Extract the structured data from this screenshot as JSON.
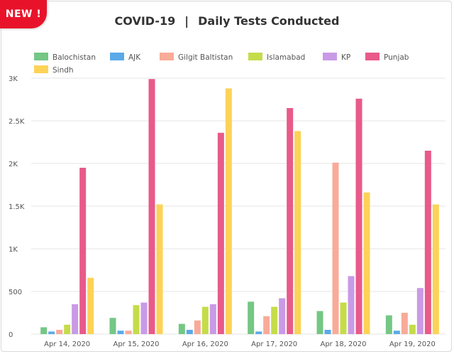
{
  "badge": {
    "label": "NEW !"
  },
  "header": {
    "title_left": "COVID-19",
    "separator": "|",
    "title_right": "Daily Tests Conducted"
  },
  "colors": {
    "Balochistan": "#74c784",
    "AJK": "#5aaae8",
    "Gilgit Baltistan": "#f8ab98",
    "Islamabad": "#c5dc4a",
    "KP": "#c99ae6",
    "Punjab": "#e85a8a",
    "Sindh": "#fdd257",
    "grid": "#e6e6e6",
    "axis_text": "#555555"
  },
  "chart_data": {
    "type": "bar",
    "title": "COVID-19 | Daily Tests Conducted",
    "xlabel": "",
    "ylabel": "",
    "ylim": [
      0,
      3000
    ],
    "yticks": [
      0,
      500,
      1000,
      1500,
      2000,
      2500,
      3000
    ],
    "ytick_labels": [
      "0",
      "500",
      "1K",
      "1.5K",
      "2K",
      "2.5K",
      "3K"
    ],
    "legend_position": "top-left",
    "grid": true,
    "categories": [
      "Apr 14, 2020",
      "Apr 15, 2020",
      "Apr 16, 2020",
      "Apr 17, 2020",
      "Apr 18, 2020",
      "Apr 19, 2020"
    ],
    "series": [
      {
        "name": "Balochistan",
        "values": [
          80,
          190,
          120,
          380,
          270,
          220
        ]
      },
      {
        "name": "AJK",
        "values": [
          30,
          40,
          50,
          30,
          50,
          40
        ]
      },
      {
        "name": "Gilgit Baltistan",
        "values": [
          50,
          40,
          160,
          210,
          2010,
          250
        ]
      },
      {
        "name": "Islamabad",
        "values": [
          110,
          340,
          320,
          320,
          370,
          110
        ]
      },
      {
        "name": "KP",
        "values": [
          350,
          370,
          350,
          420,
          680,
          540
        ]
      },
      {
        "name": "Punjab",
        "values": [
          1950,
          2990,
          2360,
          2650,
          2760,
          2150
        ]
      },
      {
        "name": "Sindh",
        "values": [
          660,
          1520,
          2880,
          2380,
          1660,
          1520
        ]
      }
    ]
  }
}
